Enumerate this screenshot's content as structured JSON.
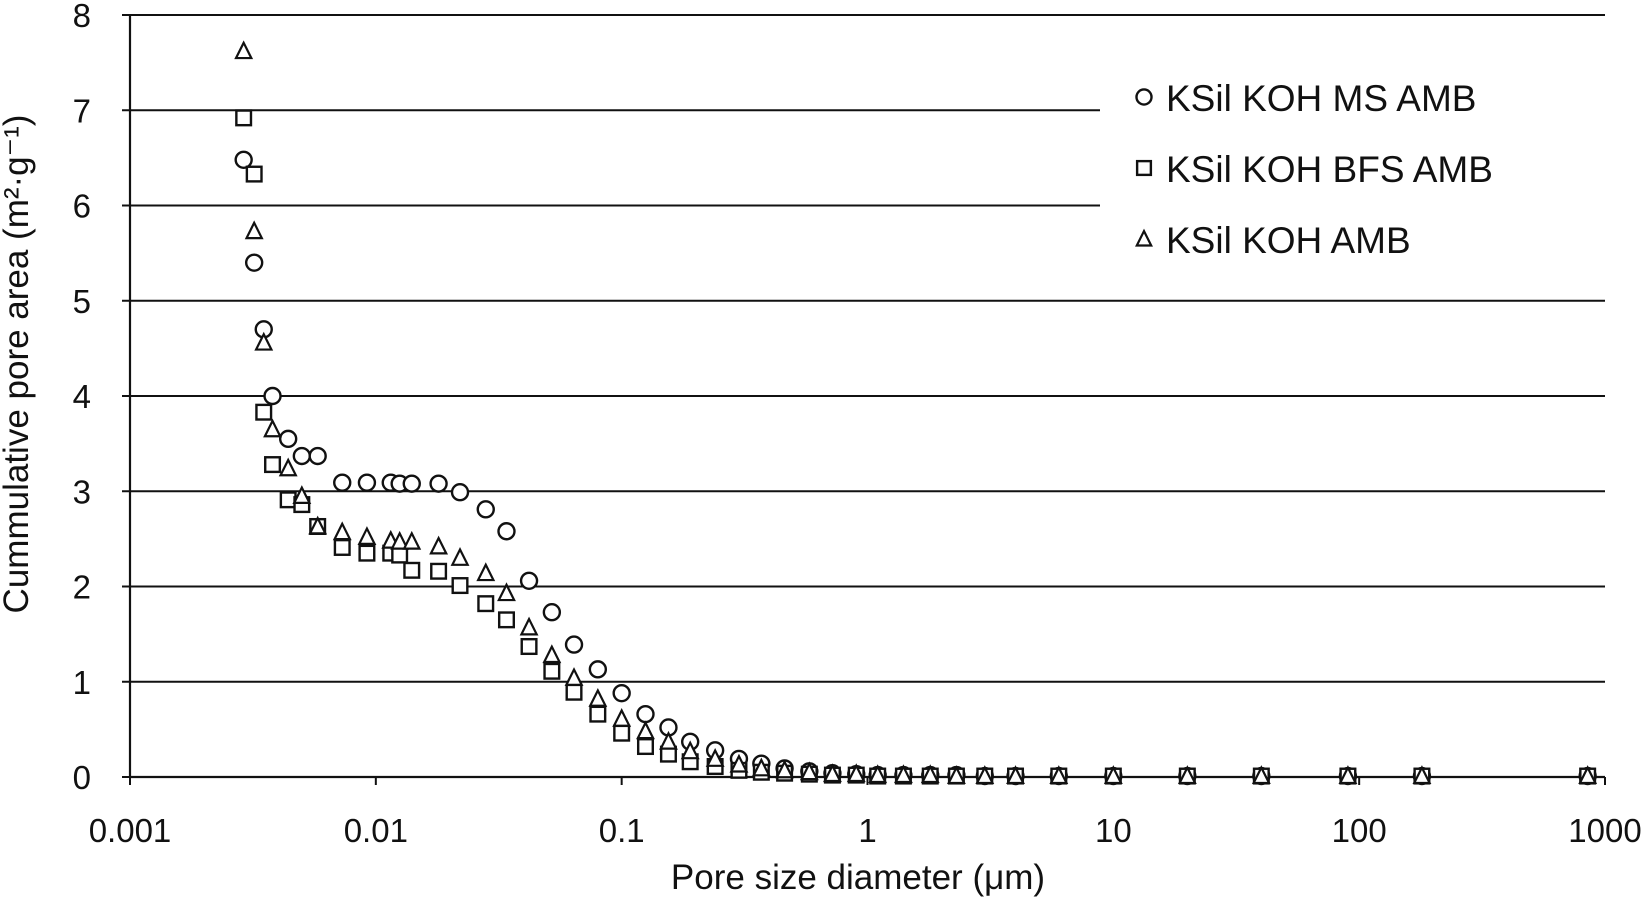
{
  "chart_data": {
    "type": "scatter",
    "title": "",
    "xlabel": "Pore size diameter (μm)",
    "ylabel": "Cummulative pore area (m²·g⁻¹)",
    "x_scale": "log",
    "xlim": [
      0.001,
      1000
    ],
    "ylim": [
      0,
      8
    ],
    "x_ticks": [
      {
        "value": 0.001,
        "label": "0.001"
      },
      {
        "value": 0.01,
        "label": "0.01"
      },
      {
        "value": 0.1,
        "label": "0.1"
      },
      {
        "value": 1,
        "label": "1"
      },
      {
        "value": 10,
        "label": "10"
      },
      {
        "value": 100,
        "label": "100"
      },
      {
        "value": 1000,
        "label": "1000"
      }
    ],
    "y_ticks": [
      {
        "value": 0,
        "label": "0"
      },
      {
        "value": 1,
        "label": "1"
      },
      {
        "value": 2,
        "label": "2"
      },
      {
        "value": 3,
        "label": "3"
      },
      {
        "value": 4,
        "label": "4"
      },
      {
        "value": 5,
        "label": "5"
      },
      {
        "value": 6,
        "label": "6"
      },
      {
        "value": 7,
        "label": "7"
      },
      {
        "value": 8,
        "label": "8"
      }
    ],
    "grid": "horizontal",
    "legend_position": "top-right",
    "series": [
      {
        "name": "KSil KOH MS AMB",
        "marker": "circle",
        "color": "#111111",
        "points": [
          [
            0.0029,
            6.48
          ],
          [
            0.0032,
            5.4
          ],
          [
            0.0035,
            4.7
          ],
          [
            0.0038,
            4.0
          ],
          [
            0.0044,
            3.55
          ],
          [
            0.005,
            3.37
          ],
          [
            0.0058,
            3.37
          ],
          [
            0.0073,
            3.09
          ],
          [
            0.0092,
            3.09
          ],
          [
            0.0115,
            3.09
          ],
          [
            0.0125,
            3.08
          ],
          [
            0.014,
            3.08
          ],
          [
            0.018,
            3.08
          ],
          [
            0.022,
            2.99
          ],
          [
            0.028,
            2.81
          ],
          [
            0.034,
            2.58
          ],
          [
            0.042,
            2.06
          ],
          [
            0.052,
            1.73
          ],
          [
            0.064,
            1.39
          ],
          [
            0.08,
            1.13
          ],
          [
            0.1,
            0.88
          ],
          [
            0.125,
            0.66
          ],
          [
            0.155,
            0.52
          ],
          [
            0.19,
            0.37
          ],
          [
            0.24,
            0.28
          ],
          [
            0.3,
            0.19
          ],
          [
            0.37,
            0.14
          ],
          [
            0.46,
            0.09
          ],
          [
            0.58,
            0.06
          ],
          [
            0.72,
            0.04
          ],
          [
            0.9,
            0.03
          ],
          [
            1.1,
            0.02
          ],
          [
            1.4,
            0.02
          ],
          [
            1.8,
            0.02
          ],
          [
            2.3,
            0.02
          ],
          [
            3,
            0.01
          ],
          [
            4,
            0.01
          ],
          [
            6,
            0.01
          ],
          [
            10,
            0.01
          ],
          [
            20,
            0.01
          ],
          [
            40,
            0.01
          ],
          [
            90,
            0.01
          ],
          [
            180,
            0.01
          ],
          [
            850,
            0.01
          ]
        ]
      },
      {
        "name": "KSil KOH BFS AMB",
        "marker": "square",
        "color": "#111111",
        "points": [
          [
            0.0029,
            6.92
          ],
          [
            0.0032,
            6.33
          ],
          [
            0.0035,
            3.83
          ],
          [
            0.0038,
            3.28
          ],
          [
            0.0044,
            2.91
          ],
          [
            0.005,
            2.86
          ],
          [
            0.0058,
            2.63
          ],
          [
            0.0073,
            2.41
          ],
          [
            0.0092,
            2.35
          ],
          [
            0.0115,
            2.35
          ],
          [
            0.0125,
            2.33
          ],
          [
            0.014,
            2.17
          ],
          [
            0.018,
            2.16
          ],
          [
            0.022,
            2.01
          ],
          [
            0.028,
            1.82
          ],
          [
            0.034,
            1.65
          ],
          [
            0.042,
            1.37
          ],
          [
            0.052,
            1.11
          ],
          [
            0.064,
            0.89
          ],
          [
            0.08,
            0.66
          ],
          [
            0.1,
            0.46
          ],
          [
            0.125,
            0.32
          ],
          [
            0.155,
            0.24
          ],
          [
            0.19,
            0.16
          ],
          [
            0.24,
            0.11
          ],
          [
            0.3,
            0.07
          ],
          [
            0.37,
            0.05
          ],
          [
            0.46,
            0.04
          ],
          [
            0.58,
            0.03
          ],
          [
            0.72,
            0.02
          ],
          [
            0.9,
            0.02
          ],
          [
            1.1,
            0.01
          ],
          [
            1.4,
            0.01
          ],
          [
            1.8,
            0.01
          ],
          [
            2.3,
            0.01
          ],
          [
            3,
            0.01
          ],
          [
            4,
            0.01
          ],
          [
            6,
            0.01
          ],
          [
            10,
            0.01
          ],
          [
            20,
            0.01
          ],
          [
            40,
            0.01
          ],
          [
            90,
            0.01
          ],
          [
            180,
            0.01
          ],
          [
            850,
            0.01
          ]
        ]
      },
      {
        "name": "KSil KOH AMB",
        "marker": "triangle",
        "color": "#111111",
        "points": [
          [
            0.0029,
            7.62
          ],
          [
            0.0032,
            5.73
          ],
          [
            0.0035,
            4.56
          ],
          [
            0.0038,
            3.65
          ],
          [
            0.0044,
            3.24
          ],
          [
            0.005,
            2.95
          ],
          [
            0.0058,
            2.63
          ],
          [
            0.0073,
            2.57
          ],
          [
            0.0092,
            2.52
          ],
          [
            0.0115,
            2.48
          ],
          [
            0.0125,
            2.47
          ],
          [
            0.014,
            2.47
          ],
          [
            0.018,
            2.42
          ],
          [
            0.022,
            2.3
          ],
          [
            0.028,
            2.14
          ],
          [
            0.034,
            1.93
          ],
          [
            0.042,
            1.57
          ],
          [
            0.052,
            1.28
          ],
          [
            0.064,
            1.04
          ],
          [
            0.08,
            0.82
          ],
          [
            0.1,
            0.61
          ],
          [
            0.125,
            0.48
          ],
          [
            0.155,
            0.37
          ],
          [
            0.19,
            0.27
          ],
          [
            0.24,
            0.19
          ],
          [
            0.3,
            0.13
          ],
          [
            0.37,
            0.09
          ],
          [
            0.46,
            0.07
          ],
          [
            0.58,
            0.05
          ],
          [
            0.72,
            0.03
          ],
          [
            0.9,
            0.03
          ],
          [
            1.1,
            0.02
          ],
          [
            1.4,
            0.02
          ],
          [
            1.8,
            0.02
          ],
          [
            2.3,
            0.01
          ],
          [
            3,
            0.01
          ],
          [
            4,
            0.01
          ],
          [
            6,
            0.01
          ],
          [
            10,
            0.01
          ],
          [
            20,
            0.01
          ],
          [
            40,
            0.01
          ],
          [
            90,
            0.01
          ],
          [
            180,
            0.01
          ],
          [
            850,
            0.01
          ]
        ]
      }
    ]
  }
}
